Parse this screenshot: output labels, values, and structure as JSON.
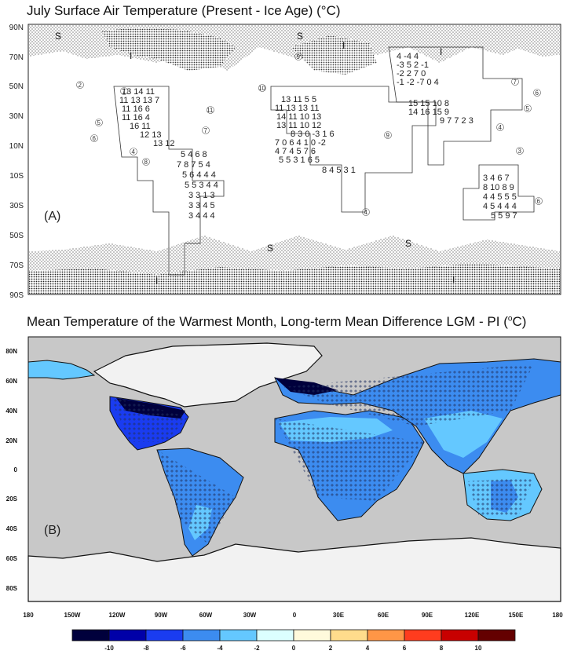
{
  "panel_a": {
    "title": "July Surface Air Temperature (Present - Ice Age) (°C)",
    "panel_label": "(A)",
    "lat_labels": [
      "90N",
      "70N",
      "50N",
      "30N",
      "10N",
      "10S",
      "30S",
      "50S",
      "70S",
      "90S"
    ],
    "region_labels": [
      "S",
      "I",
      "S",
      "I",
      "I",
      "S",
      "S",
      "I",
      "I"
    ],
    "circled_numbers": [
      "2",
      "7",
      "11",
      "5",
      "6",
      "4",
      "8",
      "10",
      "9",
      "7",
      "5",
      "7",
      "6",
      "4",
      "3",
      "6",
      "4",
      "9"
    ],
    "grid_rows_na": [
      "13 14 11",
      "11 13 13 7",
      "11 16 6",
      "11 16 4",
      "16 11",
      "12 13",
      "13 12"
    ],
    "grid_rows_eu": [
      "13 11 5 5",
      "11 13 13 11",
      "14 11 10 13",
      "13 11 10 12",
      "8 3 0 -3 1 6",
      "7 0 6 4 1 0 -2",
      "4 7 4 5 7 6",
      "5 5 3 1 6 5",
      "8 4 5 3 1"
    ],
    "grid_rows_sa": [
      "5 4 6 8",
      "7 8 7 5 4",
      "5 6 4 4 4",
      "5 5 3 4 4",
      "3 3 1 3",
      "3 3 4 5",
      "3 4 4 4"
    ],
    "grid_rows_asia": [
      "4 -4 4",
      "-3 5 2 -1",
      "-2 2 7 0",
      "-1 -2 -7 0 4",
      "15 15 10 8",
      "14 16 15 9",
      "9 7 7 2 3"
    ],
    "grid_rows_au": [
      "3 4 6 7",
      "8 10 8 9",
      "4 4 5 5 5",
      "4 5 4 4 4",
      "5 5 9 7"
    ]
  },
  "panel_b": {
    "title": "Mean Temperature of the Warmest Month, Long-term Mean Difference LGM - PI (",
    "title_unit": "C)",
    "title_degree": "o",
    "panel_label": "(B)",
    "lat_labels": [
      "80N",
      "60N",
      "40N",
      "20N",
      "0",
      "20S",
      "40S",
      "60S",
      "80S"
    ],
    "lon_labels": [
      "180",
      "150W",
      "120W",
      "90W",
      "60W",
      "30W",
      "0",
      "30E",
      "60E",
      "90E",
      "120E",
      "150E",
      "180"
    ]
  },
  "colorbar": {
    "labels": [
      "-10",
      "-8",
      "-6",
      "-4",
      "-2",
      "0",
      "2",
      "4",
      "6",
      "8",
      "10"
    ],
    "colors": [
      "#00003c",
      "#0000a8",
      "#1a3cf0",
      "#3c8cf0",
      "#64c8ff",
      "#dcffff",
      "#fffadc",
      "#ffdc8c",
      "#ff9646",
      "#ff3c1e",
      "#c80000",
      "#640000"
    ]
  },
  "colors": {
    "land_grey": "#c8c8c8",
    "ice_white": "#f2f2f2",
    "ocean_grey": "#cbcbcb"
  }
}
